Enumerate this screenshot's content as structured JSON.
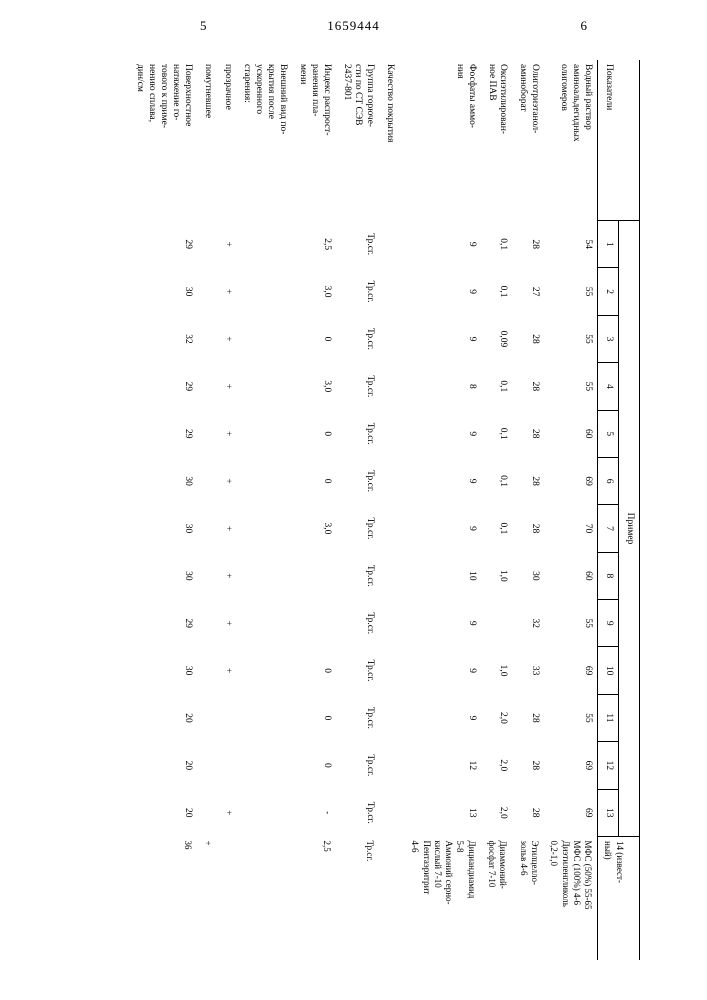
{
  "header": {
    "page_left": "5",
    "doc_number": "1659444",
    "page_right": "6"
  },
  "table": {
    "row_header_label": "Показатели",
    "group_label": "Пример",
    "columns": [
      "1",
      "2",
      "3",
      "4",
      "5",
      "6",
      "7",
      "8",
      "9",
      "10",
      "11",
      "12",
      "13"
    ],
    "known_col_label": "14 (извест-\nный)",
    "rows": [
      {
        "label": "Водный раствор\nаминоальдегидных\nолигомеров",
        "c": [
          "54",
          "55",
          "55",
          "55",
          "60",
          "69",
          "70",
          "60",
          "55",
          "69",
          "55",
          "69",
          "69"
        ],
        "known": "МФС (50%) 55-65\nМФС (100%) 4-6\nДиэтиленгликоль\n0,2-1,0"
      },
      {
        "label": "Олиготриэтанол-\nаминоборат",
        "c": [
          "28",
          "27",
          "28",
          "28",
          "28",
          "28",
          "28",
          "30",
          "32",
          "33",
          "28",
          "28",
          "28"
        ],
        "known": "Этилцелло-\nзольв 4-6"
      },
      {
        "label": "Оксиэтилирован-\nное ПАВ",
        "c": [
          "0,1",
          "0,1",
          "0,09",
          "0,1",
          "0,1",
          "0,1",
          "0,1",
          "1,0",
          "",
          "1,0",
          "2,0",
          "2,0",
          "2,0"
        ],
        "known": "Диаммоний-\nфосфат 7-10"
      },
      {
        "label": "Фосфаты аммо-\nния",
        "c": [
          "9",
          "9",
          "9",
          "8",
          "9",
          "9",
          "9",
          "10",
          "9",
          "9",
          "9",
          "12",
          "13"
        ],
        "known": "Дициандиамид\n5-8\nАммоний серно-\nкислый 7-10\nПентаэритрит\n4-6"
      }
    ],
    "section2_label": "Качество покрытия",
    "rows2": [
      {
        "label": "Группа горюче-\nсти по СТ СЭВ\n2437-801",
        "c": [
          "Тр.сг.",
          "Тр.сг.",
          "Тр.сг.",
          "Тр.сг.",
          "Тр.сг.",
          "Тр.сг.",
          "Тр.сг.",
          "Тр.сг.",
          "Тр.сг.",
          "Тр.сг.",
          "Тр.сг.",
          "Тр.сг.",
          "Тр.сг."
        ],
        "known": "Тр.сг."
      },
      {
        "label": "Индекс распрост-\nранения пла-\nмени",
        "c": [
          "2,5",
          "3,0",
          "0",
          "3,0",
          "0",
          "0",
          "3,0",
          "",
          "",
          "0",
          "0",
          "0",
          "-"
        ],
        "known": "2,5"
      },
      {
        "label": "Внешний вид по-\nкрытия после\nускоренного\nстарения:",
        "c": [
          "",
          "",
          "",
          "",
          "",
          "",
          "",
          "",
          "",
          "",
          "",
          "",
          ""
        ],
        "known": ""
      },
      {
        "label": "   прозрачное",
        "c": [
          "+",
          "+",
          "+",
          "+",
          "+",
          "+",
          "+",
          "+",
          "+",
          "+",
          "",
          "",
          "+"
        ],
        "known": ""
      },
      {
        "label": "   помутневшее",
        "c": [
          "",
          "",
          "",
          "",
          "",
          "",
          "",
          "",
          "",
          "",
          "",
          "",
          ""
        ],
        "known": "+"
      },
      {
        "label": "Поверхностное\nнатяжение го-\nтового к приме-\nнению сплава,\nдин/см",
        "c": [
          "29",
          "30",
          "32",
          "29",
          "29",
          "30",
          "30",
          "30",
          "29",
          "30",
          "20",
          "20",
          "20"
        ],
        "known": "36"
      }
    ]
  }
}
